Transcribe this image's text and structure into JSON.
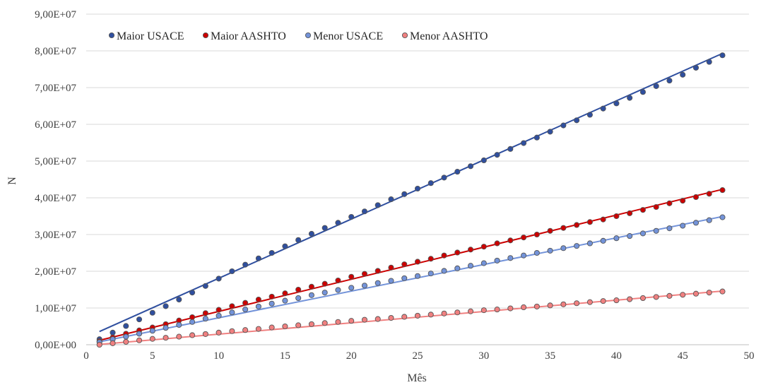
{
  "chart_data": {
    "type": "scatter",
    "title": "",
    "xlabel": "Mês",
    "ylabel": "N",
    "xlim": [
      0,
      50
    ],
    "ylim": [
      0,
      90000000
    ],
    "x_ticks": [
      "0",
      "5",
      "10",
      "15",
      "20",
      "25",
      "30",
      "35",
      "40",
      "45",
      "50"
    ],
    "y_ticks": [
      "0,00E+00",
      "1,00E+07",
      "2,00E+07",
      "3,00E+07",
      "4,00E+07",
      "5,00E+07",
      "6,00E+07",
      "7,00E+07",
      "8,00E+07",
      "9,00E+07"
    ],
    "grid": "horizontal",
    "legend_position": "top-left",
    "series": [
      {
        "name": "Maior USACE",
        "color": "#2f4f9f",
        "trendline": [
          3600000,
          79300000
        ],
        "x": [
          1,
          2,
          3,
          4,
          5,
          6,
          7,
          8,
          9,
          10,
          11,
          12,
          13,
          14,
          15,
          16,
          17,
          18,
          19,
          20,
          21,
          22,
          23,
          24,
          25,
          26,
          27,
          28,
          29,
          30,
          31,
          32,
          33,
          34,
          35,
          36,
          37,
          38,
          39,
          40,
          41,
          42,
          43,
          44,
          45,
          46,
          47,
          48
        ],
        "y": [
          1500000,
          3300000,
          5100000,
          6900000,
          8700000,
          10500000,
          12300000,
          14200000,
          16000000,
          18000000,
          20000000,
          21800000,
          23500000,
          25000000,
          26800000,
          28500000,
          30200000,
          31800000,
          33200000,
          34800000,
          36300000,
          38000000,
          39600000,
          41000000,
          42500000,
          44000000,
          45500000,
          47100000,
          48600000,
          50200000,
          51700000,
          53300000,
          54900000,
          56400000,
          58000000,
          59700000,
          61100000,
          62600000,
          64300000,
          65700000,
          67200000,
          68800000,
          70400000,
          71900000,
          73500000,
          75400000,
          77000000,
          78800000
        ]
      },
      {
        "name": "Maior AASHTO",
        "color": "#cc0000",
        "trendline": [
          1200000,
          42300000
        ],
        "x": [
          1,
          2,
          3,
          4,
          5,
          6,
          7,
          8,
          9,
          10,
          11,
          12,
          13,
          14,
          15,
          16,
          17,
          18,
          19,
          20,
          21,
          22,
          23,
          24,
          25,
          26,
          27,
          28,
          29,
          30,
          31,
          32,
          33,
          34,
          35,
          36,
          37,
          38,
          39,
          40,
          41,
          42,
          43,
          44,
          45,
          46,
          47,
          48
        ],
        "y": [
          1000000,
          2000000,
          3000000,
          3900000,
          4700000,
          5600000,
          6600000,
          7500000,
          8600000,
          9500000,
          10500000,
          11400000,
          12300000,
          13100000,
          14000000,
          15000000,
          15800000,
          16600000,
          17500000,
          18500000,
          19300000,
          20100000,
          21000000,
          21900000,
          22600000,
          23400000,
          24300000,
          25100000,
          25900000,
          26700000,
          27600000,
          28400000,
          29200000,
          30000000,
          31000000,
          31800000,
          32600000,
          33400000,
          34100000,
          35000000,
          35800000,
          36700000,
          37500000,
          38500000,
          39200000,
          40200000,
          41100000,
          42100000
        ]
      },
      {
        "name": "Menor USACE",
        "color": "#7393d9",
        "trendline": [
          800000,
          34900000
        ],
        "x": [
          1,
          2,
          3,
          4,
          5,
          6,
          7,
          8,
          9,
          10,
          11,
          12,
          13,
          14,
          15,
          16,
          17,
          18,
          19,
          20,
          21,
          22,
          23,
          24,
          25,
          26,
          27,
          28,
          29,
          30,
          31,
          32,
          33,
          34,
          35,
          36,
          37,
          38,
          39,
          40,
          41,
          42,
          43,
          44,
          45,
          46,
          47,
          48
        ],
        "y": [
          700000,
          1500000,
          2200000,
          3000000,
          3800000,
          4600000,
          5400000,
          6200000,
          7100000,
          7900000,
          8800000,
          9600000,
          10400000,
          11200000,
          12000000,
          12700000,
          13500000,
          14200000,
          14900000,
          15500000,
          16100000,
          16800000,
          17400000,
          18100000,
          18700000,
          19400000,
          20100000,
          20800000,
          21500000,
          22200000,
          22900000,
          23600000,
          24300000,
          25000000,
          25600000,
          26300000,
          26900000,
          27600000,
          28300000,
          29000000,
          29600000,
          30300000,
          31000000,
          31700000,
          32400000,
          33200000,
          33900000,
          34700000
        ]
      },
      {
        "name": "Menor AASHTO",
        "color": "#f08080",
        "trendline": [
          100000,
          14600000
        ],
        "x": [
          1,
          2,
          3,
          4,
          5,
          6,
          7,
          8,
          9,
          10,
          11,
          12,
          13,
          14,
          15,
          16,
          17,
          18,
          19,
          20,
          21,
          22,
          23,
          24,
          25,
          26,
          27,
          28,
          29,
          30,
          31,
          32,
          33,
          34,
          35,
          36,
          37,
          38,
          39,
          40,
          41,
          42,
          43,
          44,
          45,
          46,
          47,
          48
        ],
        "y": [
          0,
          400000,
          800000,
          1200000,
          1600000,
          1900000,
          2200000,
          2600000,
          2900000,
          3300000,
          3700000,
          4000000,
          4300000,
          4700000,
          5000000,
          5300000,
          5600000,
          5900000,
          6200000,
          6500000,
          6800000,
          7000000,
          7300000,
          7600000,
          7900000,
          8200000,
          8500000,
          8800000,
          9100000,
          9400000,
          9600000,
          9900000,
          10200000,
          10400000,
          10700000,
          11000000,
          11300000,
          11600000,
          11900000,
          12100000,
          12400000,
          12700000,
          13000000,
          13300000,
          13600000,
          13900000,
          14200000,
          14500000
        ]
      }
    ]
  }
}
